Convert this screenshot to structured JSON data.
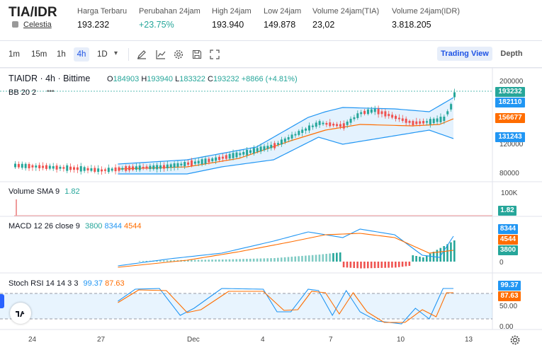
{
  "header": {
    "pair": "TIA/IDR",
    "sub_label": "Celestia",
    "stats": [
      {
        "label": "Harga Terbaru",
        "value": "193.232"
      },
      {
        "label": "Perubahan 24jam",
        "value": "+23.75%"
      },
      {
        "label": "High 24jam",
        "value": "193.940"
      },
      {
        "label": "Low 24jam",
        "value": "149.878"
      },
      {
        "label": "Volume 24jam(TIA)",
        "value": "23,02"
      },
      {
        "label": "Volume 24jam(IDR)",
        "value": "3.818.205"
      }
    ]
  },
  "toolbar": {
    "timeframes": [
      "1m",
      "15m",
      "1h",
      "4h",
      "1D"
    ],
    "active": "4h",
    "views": [
      "Trading View",
      "Depth"
    ]
  },
  "legend": {
    "symbol": "TIAIDR · 4h · Bittime",
    "o_label": "O",
    "o": "184903",
    "h_label": "H",
    "h": "193940",
    "l_label": "L",
    "l": "183322",
    "c_label": "C",
    "c": "193232",
    "change": "+8866 (+4.81%)",
    "bb": "BB 20 2",
    "dots": "•••"
  },
  "price_axis": [
    "200000",
    "120000",
    "80000"
  ],
  "price_tags": [
    {
      "value": "193232",
      "color": "#26a69a"
    },
    {
      "value": "182110",
      "color": "#2196f3"
    },
    {
      "value": "156677",
      "color": "#ff6d00"
    },
    {
      "value": "131243",
      "color": "#2196f3"
    }
  ],
  "volume": {
    "label": "Volume SMA 9",
    "value": "1.82",
    "axis": "100K",
    "tag": "1.82"
  },
  "macd": {
    "label": "MACD 12 26 close 9",
    "v1": "3800",
    "v2": "8344",
    "v3": "4544",
    "axis_zero": "0",
    "tags": [
      {
        "value": "8344",
        "color": "#2196f3"
      },
      {
        "value": "4544",
        "color": "#ff6d00"
      },
      {
        "value": "3800",
        "color": "#26a69a"
      }
    ]
  },
  "stoch": {
    "label": "Stoch RSI 14 14 3 3",
    "k": "99.37",
    "d": "87.63",
    "axis": [
      "50.00",
      "0.00"
    ],
    "tags": [
      {
        "value": "99.37",
        "color": "#2196f3"
      },
      {
        "value": "87.63",
        "color": "#ff6d00"
      }
    ]
  },
  "time_axis": [
    "24",
    "27",
    "Dec",
    "4",
    "7",
    "10",
    "13"
  ],
  "colors": {
    "up": "#26a69a",
    "down": "#ef5350",
    "bb": "#2196f3",
    "basis": "#ff6d00"
  }
}
